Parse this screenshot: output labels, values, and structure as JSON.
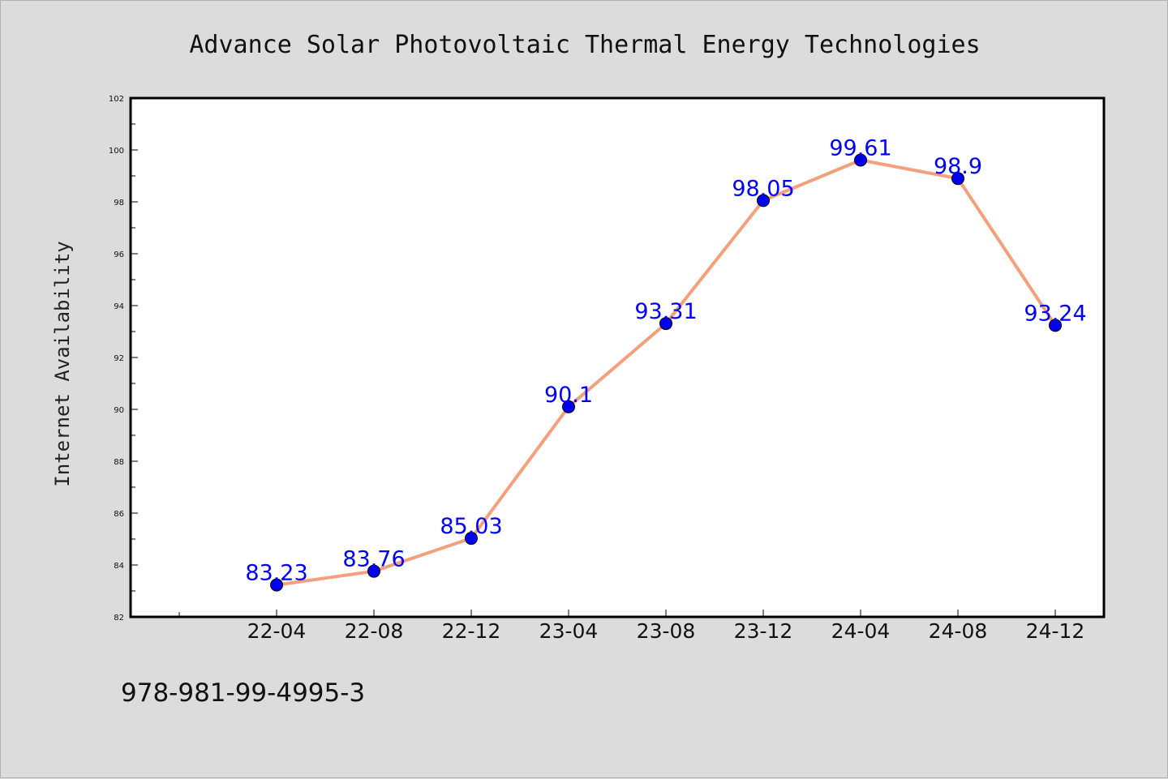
{
  "chart_data": {
    "type": "line",
    "title": "Advance Solar Photovoltaic Thermal Energy Technologies",
    "xlabel": "",
    "ylabel": "Internet Availability",
    "categories": [
      "22-04",
      "22-08",
      "22-12",
      "23-04",
      "23-08",
      "23-12",
      "24-04",
      "24-08",
      "24-12"
    ],
    "series": [
      {
        "values": [
          83.23,
          83.76,
          85.03,
          90.1,
          93.31,
          98.05,
          99.61,
          98.9,
          93.24
        ],
        "data_labels": [
          "83.23",
          "83.76",
          "85.03",
          "90.1",
          "93.31",
          "98.05",
          "99.61",
          "98.9",
          "93.24"
        ]
      }
    ],
    "ylim": [
      82,
      102
    ],
    "yticks": [
      82,
      84,
      86,
      88,
      90,
      92,
      94,
      96,
      98,
      100,
      102
    ],
    "ytick_labels": [
      "82",
      "84",
      "86",
      "88",
      "90",
      "92",
      "94",
      "96",
      "98",
      "100",
      "102"
    ],
    "grid": false,
    "legend": "none"
  },
  "footnote": "978-981-99-4995-3",
  "colors": {
    "background": "#dcdcdc",
    "plot_background": "#ffffff",
    "line": "#f4a07c",
    "marker": "#0000ee",
    "data_label": "#0000ff"
  }
}
